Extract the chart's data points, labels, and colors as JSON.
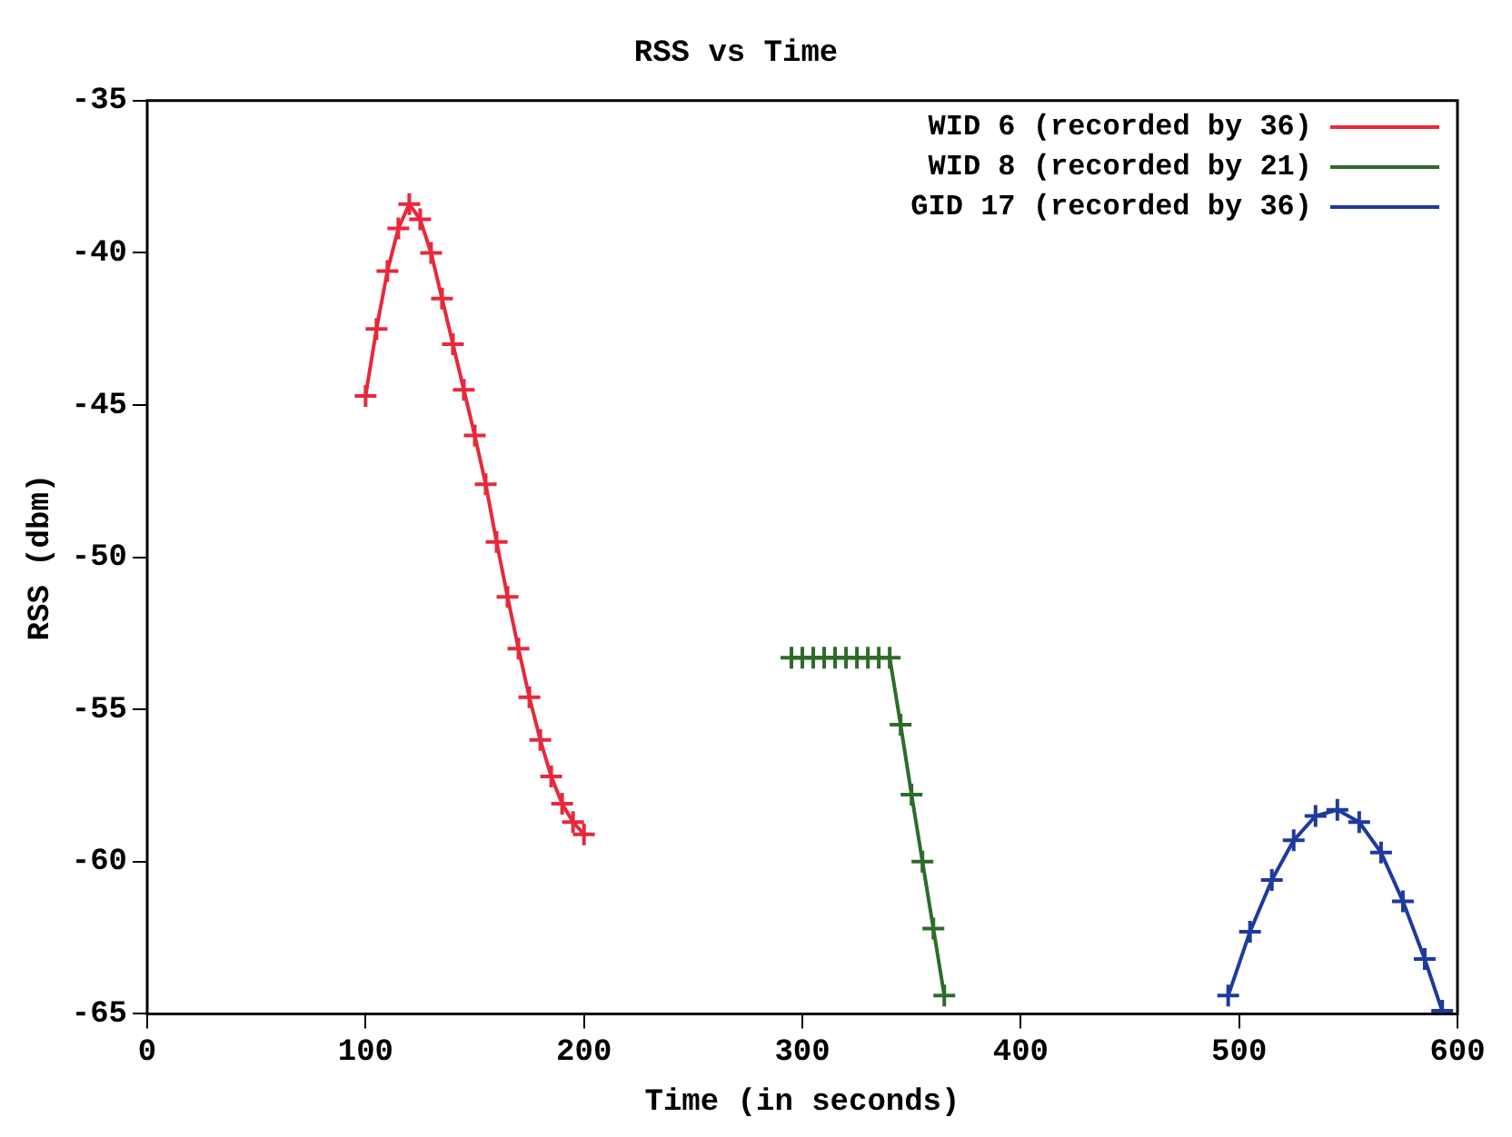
{
  "chart_data": {
    "type": "line",
    "title": "RSS vs Time",
    "xlabel": "Time (in seconds)",
    "ylabel": "RSS (dbm)",
    "xlim": [
      0,
      600
    ],
    "xticks": [
      0,
      100,
      200,
      300,
      400,
      500,
      600
    ],
    "ylim": [
      -65,
      -35
    ],
    "yticks": [
      -65,
      -60,
      -55,
      -50,
      -45,
      -40,
      -35
    ],
    "grid": false,
    "legend": "top right",
    "line_style": "solid",
    "series": [
      {
        "name": "WID 6 (recorded by 36)",
        "color": "#e8283c",
        "marker": "cross",
        "x": [
          100,
          105,
          110,
          115,
          120,
          125,
          130,
          135,
          140,
          145,
          150,
          155,
          160,
          165,
          170,
          175,
          180,
          185,
          190,
          195,
          200
        ],
        "values": [
          -44.7,
          -42.5,
          -40.6,
          -39.2,
          -38.4,
          -38.9,
          -40.0,
          -41.5,
          -43.0,
          -44.5,
          -46.0,
          -47.6,
          -49.5,
          -51.3,
          -53.0,
          -54.6,
          -56.0,
          -57.2,
          -58.1,
          -58.7,
          -59.1
        ]
      },
      {
        "name": "WID 8 (recorded by 21)",
        "color": "#2e6b2a",
        "marker": "cross",
        "x": [
          295,
          300,
          305,
          310,
          315,
          320,
          325,
          330,
          335,
          340,
          345,
          350,
          355,
          360,
          365
        ],
        "values": [
          -53.3,
          -53.3,
          -53.3,
          -53.3,
          -53.3,
          -53.3,
          -53.3,
          -53.3,
          -53.3,
          -53.3,
          -55.5,
          -57.8,
          -60.0,
          -62.2,
          -64.4
        ]
      },
      {
        "name": "GID 17 (recorded by 36)",
        "color": "#1f3a9e",
        "marker": "cross",
        "x": [
          495,
          505,
          515,
          525,
          535,
          545,
          555,
          565,
          575,
          585,
          593
        ],
        "values": [
          -64.4,
          -62.3,
          -60.6,
          -59.3,
          -58.5,
          -58.3,
          -58.7,
          -59.7,
          -61.3,
          -63.2,
          -64.9
        ]
      }
    ]
  }
}
